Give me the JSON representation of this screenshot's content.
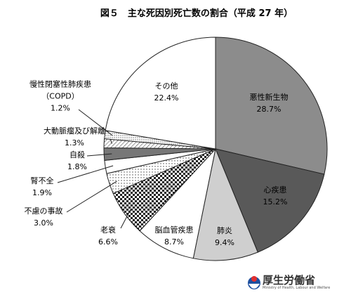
{
  "chart_data": {
    "type": "pie",
    "title": "図５　主な死因別死亡数の割合（平成 27 年）",
    "categories": [
      "悪性新生物",
      "心疾患",
      "肺炎",
      "脳血管疾患",
      "老衰",
      "不慮の事故",
      "腎不全",
      "自殺",
      "大動脈瘤及び解離",
      "慢性閉塞性肺疾患（COPD）",
      "その他"
    ],
    "values": [
      28.7,
      15.2,
      9.4,
      8.7,
      6.6,
      3.0,
      1.9,
      1.8,
      1.3,
      1.2,
      22.4
    ],
    "value_labels": [
      "28.7%",
      "15.2%",
      "9.4%",
      "8.7%",
      "6.6%",
      "3.0%",
      "1.9%",
      "1.8%",
      "1.3%",
      "1.2%",
      "22.4%"
    ],
    "colors": [
      "#8c8c8c",
      "#595959",
      "#cfcfcf",
      "#ffffff",
      "checker",
      "dots",
      "#ffffff",
      "#777777",
      "hatch",
      "finedots",
      "#ffffff"
    ]
  },
  "logo": {
    "name": "厚生労働省",
    "subtitle": "Ministry of Health, Labour and Welfare"
  }
}
